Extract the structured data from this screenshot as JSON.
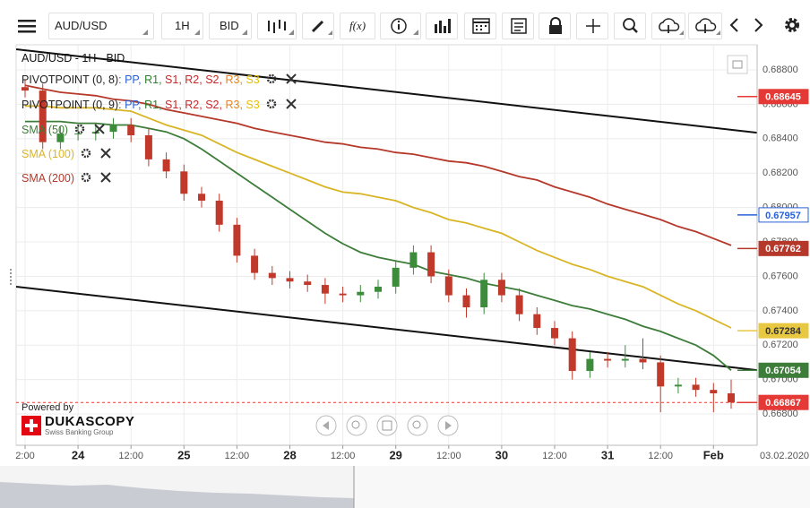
{
  "toolbar": {
    "symbol": "AUD/USD",
    "period": "1H",
    "side": "BID",
    "function_button": "f(x)"
  },
  "branding": {
    "powered_by": "Powered by",
    "brand": "DUKASCOPY",
    "tagline": "Swiss Banking Group"
  },
  "chart_data": {
    "type": "candlestick",
    "title": "AUD/USD - 1H - BID",
    "indicators": [
      {
        "name": "PIVOTPOINT (0, 8)",
        "parts": [
          {
            "text": ": ",
            "color": "#555555"
          },
          {
            "text": "PP, ",
            "color": "#2962d9"
          },
          {
            "text": "R1, ",
            "color": "#2e7d32"
          },
          {
            "text": "S1, ",
            "color": "#c62828"
          },
          {
            "text": "R2, ",
            "color": "#c62828"
          },
          {
            "text": "S2, ",
            "color": "#c62828"
          },
          {
            "text": "R3, ",
            "color": "#e8841a"
          },
          {
            "text": "S3",
            "color": "#e6c000"
          }
        ]
      },
      {
        "name": "PIVOTPOINT (0, 9)",
        "parts": [
          {
            "text": ": ",
            "color": "#555555"
          },
          {
            "text": "PP, ",
            "color": "#2962d9"
          },
          {
            "text": "R1, ",
            "color": "#2e7d32"
          },
          {
            "text": "S1, ",
            "color": "#c62828"
          },
          {
            "text": "R2, ",
            "color": "#c62828"
          },
          {
            "text": "S2, ",
            "color": "#c62828"
          },
          {
            "text": "R3, ",
            "color": "#e8841a"
          },
          {
            "text": "S3",
            "color": "#e6c000"
          }
        ]
      }
    ],
    "categories": [
      "2:00",
      null,
      null,
      "24",
      null,
      null,
      "12:00",
      null,
      null,
      "25",
      null,
      null,
      "12:00",
      null,
      null,
      "28",
      null,
      null,
      "12:00",
      null,
      null,
      "29",
      null,
      null,
      "12:00",
      null,
      null,
      "30",
      null,
      null,
      "12:00",
      null,
      null,
      "31",
      null,
      null,
      "12:00",
      null,
      null,
      "Feb",
      null
    ],
    "date_label": "03.02.2020",
    "candles": {
      "open": [
        0.687,
        0.6868,
        0.6838,
        0.6843,
        0.6843,
        0.6844,
        0.6848,
        0.6842,
        0.6828,
        0.6821,
        0.6808,
        0.6804,
        0.679,
        0.6772,
        0.6762,
        0.6759,
        0.6757,
        0.6755,
        0.675,
        0.6749,
        0.6751,
        0.6754,
        0.6765,
        0.6774,
        0.676,
        0.6749,
        0.6742,
        0.6758,
        0.6749,
        0.6738,
        0.673,
        0.6724,
        0.6705,
        0.6712,
        0.6711,
        0.6712,
        0.671,
        0.6696,
        0.6697,
        0.6694,
        0.6692
      ],
      "high": [
        0.6874,
        0.6872,
        0.6847,
        0.6847,
        0.6848,
        0.6852,
        0.6852,
        0.6846,
        0.6832,
        0.6825,
        0.6812,
        0.6808,
        0.6794,
        0.6776,
        0.6766,
        0.6763,
        0.6761,
        0.6759,
        0.6754,
        0.6755,
        0.6758,
        0.6769,
        0.6778,
        0.6778,
        0.6764,
        0.6753,
        0.6762,
        0.6762,
        0.6753,
        0.6742,
        0.6734,
        0.6728,
        0.6716,
        0.6716,
        0.672,
        0.6724,
        0.6714,
        0.6701,
        0.6701,
        0.6698,
        0.67
      ],
      "low": [
        0.6864,
        0.6834,
        0.6834,
        0.6839,
        0.6839,
        0.684,
        0.6838,
        0.6824,
        0.6817,
        0.6804,
        0.68,
        0.6786,
        0.6768,
        0.6758,
        0.6755,
        0.6753,
        0.6751,
        0.6744,
        0.6745,
        0.6745,
        0.6747,
        0.675,
        0.6761,
        0.6756,
        0.6745,
        0.6736,
        0.6738,
        0.6745,
        0.6734,
        0.6726,
        0.672,
        0.67,
        0.6701,
        0.6707,
        0.6707,
        0.6706,
        0.6681,
        0.6692,
        0.669,
        0.6681,
        0.6683
      ],
      "close": [
        0.6868,
        0.6838,
        0.6843,
        0.6843,
        0.6844,
        0.6848,
        0.6842,
        0.6828,
        0.6821,
        0.6808,
        0.6804,
        0.679,
        0.6772,
        0.6762,
        0.6759,
        0.6757,
        0.6755,
        0.675,
        0.6749,
        0.6751,
        0.6754,
        0.6765,
        0.6774,
        0.676,
        0.6749,
        0.6742,
        0.6758,
        0.6749,
        0.6738,
        0.673,
        0.6724,
        0.6705,
        0.6712,
        0.6711,
        0.6712,
        0.671,
        0.6696,
        0.6697,
        0.6694,
        0.6692,
        0.66867
      ]
    },
    "up_color": "#3c8c3c",
    "down_color": "#c0392b",
    "series": [
      {
        "name": "SMA (50)",
        "color": "#3d7d3a",
        "values": [
          0.685,
          0.685,
          0.685,
          0.6849,
          0.6849,
          0.6848,
          0.6848,
          0.6846,
          0.6844,
          0.684,
          0.6834,
          0.6827,
          0.682,
          0.6813,
          0.6806,
          0.6799,
          0.6792,
          0.6785,
          0.6779,
          0.6774,
          0.6771,
          0.6769,
          0.6767,
          0.6763,
          0.6761,
          0.6759,
          0.6756,
          0.6754,
          0.6752,
          0.6749,
          0.6746,
          0.6743,
          0.6741,
          0.6738,
          0.6735,
          0.6731,
          0.6728,
          0.6724,
          0.672,
          0.6714,
          0.67054
        ]
      },
      {
        "name": "SMA (100)",
        "color": "#d9b526",
        "values": [
          0.6859,
          0.6859,
          0.6858,
          0.6858,
          0.6858,
          0.6857,
          0.6856,
          0.6852,
          0.6848,
          0.6845,
          0.6842,
          0.6837,
          0.6832,
          0.6828,
          0.6824,
          0.682,
          0.6816,
          0.6812,
          0.6809,
          0.6808,
          0.6806,
          0.6804,
          0.68,
          0.6797,
          0.6793,
          0.6791,
          0.6788,
          0.6785,
          0.678,
          0.6775,
          0.6771,
          0.6767,
          0.6764,
          0.676,
          0.6757,
          0.6754,
          0.6749,
          0.6744,
          0.674,
          0.6735,
          0.673
        ]
      },
      {
        "name": "SMA (200)",
        "color": "#b5382a",
        "values": [
          0.6871,
          0.6869,
          0.6867,
          0.6866,
          0.6865,
          0.6863,
          0.6862,
          0.686,
          0.6857,
          0.6855,
          0.6853,
          0.6851,
          0.6849,
          0.6846,
          0.6844,
          0.6842,
          0.684,
          0.6838,
          0.6837,
          0.6835,
          0.6834,
          0.6832,
          0.6831,
          0.6829,
          0.6827,
          0.6826,
          0.6824,
          0.6821,
          0.6818,
          0.6816,
          0.6812,
          0.6809,
          0.6806,
          0.6802,
          0.6799,
          0.6796,
          0.6793,
          0.6789,
          0.6786,
          0.6782,
          0.6778
        ]
      }
    ],
    "trendlines": [
      {
        "start": 0.6892,
        "end": 0.68435,
        "color": "#111111"
      },
      {
        "start": 0.6754,
        "end": 0.67055,
        "color": "#111111"
      }
    ],
    "price_flags": [
      {
        "value": 0.68645,
        "fill": "#e53935",
        "text_color": "#ffffff"
      },
      {
        "value": 0.67957,
        "fill": "#ffffff",
        "text_color": "#2962d9"
      },
      {
        "value": 0.67762,
        "fill": "#b5382a",
        "text_color": "#ffffff"
      },
      {
        "value": 0.67284,
        "fill": "#e8c840",
        "text_color": "#333333"
      },
      {
        "value": 0.67054,
        "fill": "#3d7d3a",
        "text_color": "#ffffff"
      },
      {
        "value": 0.66867,
        "fill": "#e53935",
        "text_color": "#ffffff",
        "dashed": true
      }
    ],
    "ylim": [
      0.66618,
      0.68946
    ],
    "yticks": [
      {
        "value": 0.668,
        "label": "0.66800"
      },
      {
        "value": 0.67,
        "label": "0.67000"
      },
      {
        "value": 0.672,
        "label": "0.67200"
      },
      {
        "value": 0.674,
        "label": "0.67400"
      },
      {
        "value": 0.676,
        "label": "0.67600"
      },
      {
        "value": 0.678,
        "label": "0.67800"
      },
      {
        "value": 0.68,
        "label": "0.68000"
      },
      {
        "value": 0.682,
        "label": "0.68200"
      },
      {
        "value": 0.684,
        "label": "0.68400"
      },
      {
        "value": 0.686,
        "label": "0.68600"
      },
      {
        "value": 0.688,
        "label": "0.68800"
      }
    ],
    "grid": true
  }
}
